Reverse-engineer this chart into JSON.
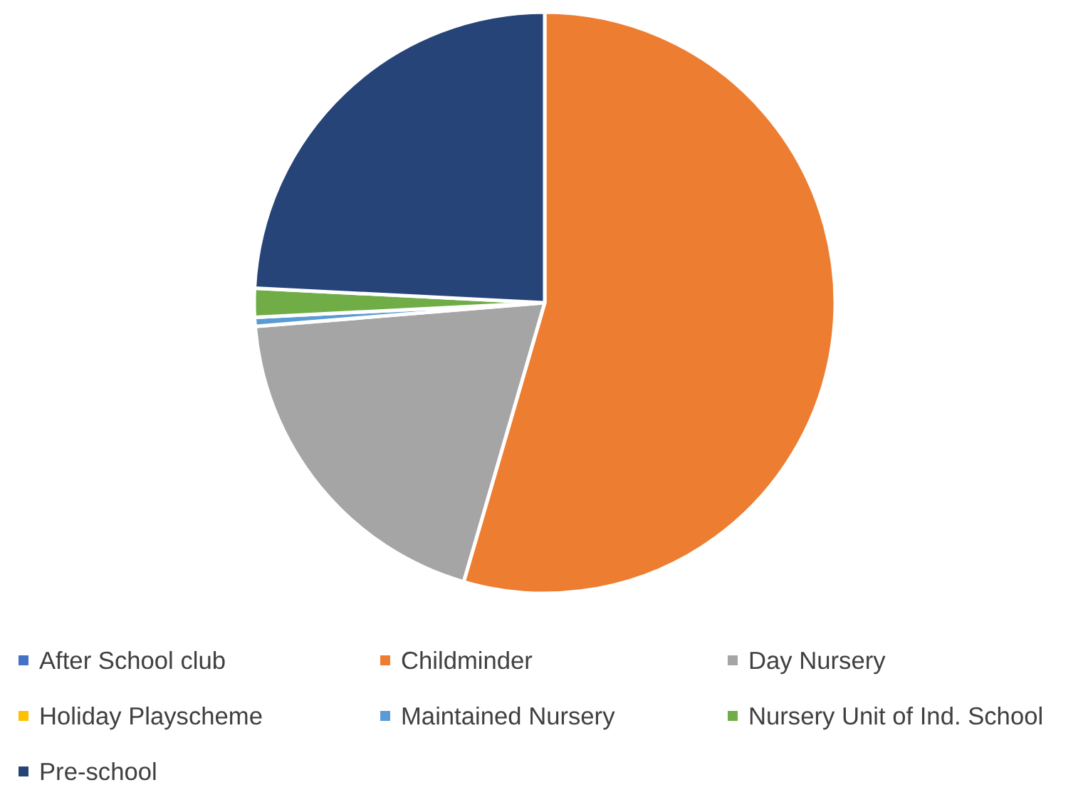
{
  "chart_data": {
    "type": "pie",
    "categories": [
      "After School club",
      "Childminder",
      "Day Nursery",
      "Holiday Playscheme",
      "Maintained Nursery",
      "Nursery Unit of Ind. School",
      "Pre-school"
    ],
    "values": [
      0,
      54.5,
      19.2,
      0,
      0.5,
      1.6,
      24.2
    ],
    "colors": [
      "#4472c4",
      "#ed7d31",
      "#a5a5a5",
      "#ffc000",
      "#5b9bd5",
      "#70ad47",
      "#264478"
    ],
    "legend": "bottom"
  }
}
